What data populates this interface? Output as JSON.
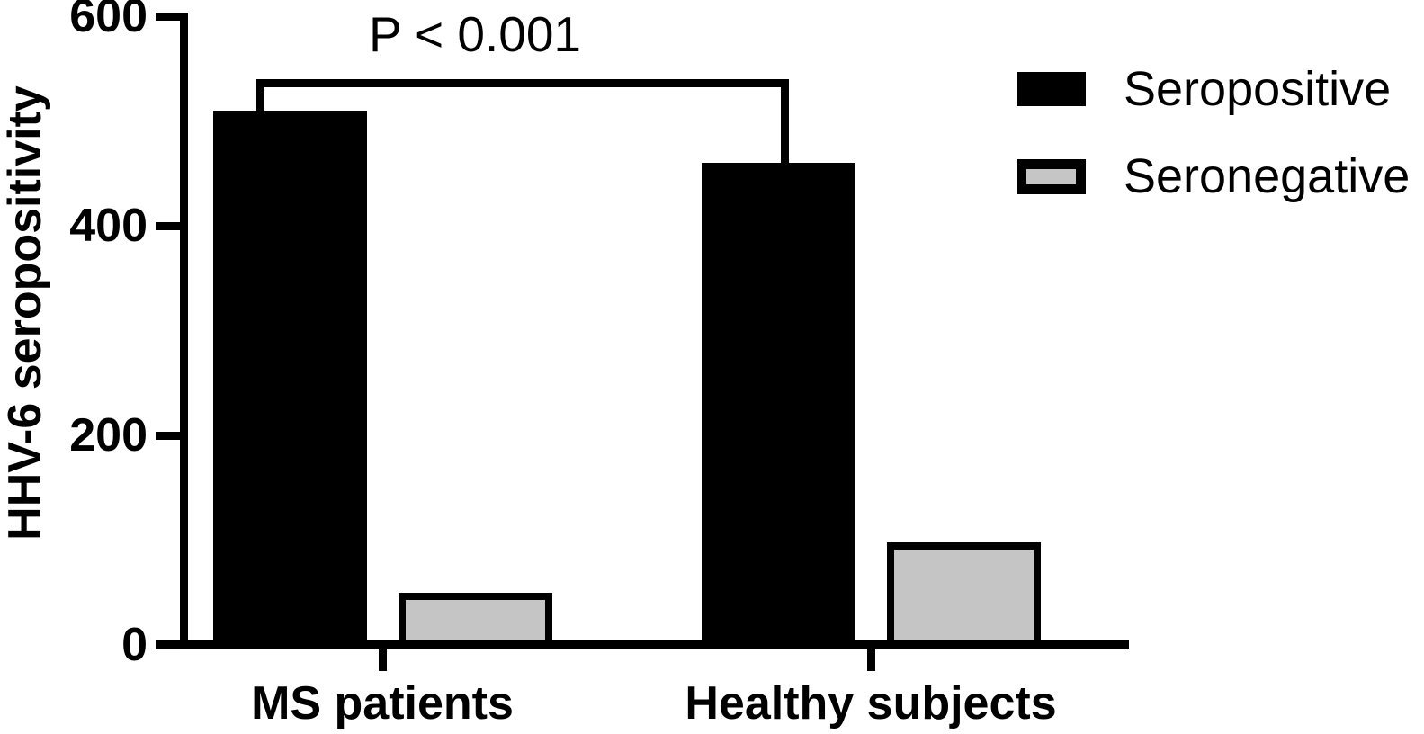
{
  "chart_data": {
    "type": "bar",
    "title": "",
    "ylabel": "HHV-6 seropositivity",
    "xlabel": "",
    "categories": [
      "MS patients",
      "Healthy subjects"
    ],
    "series": [
      {
        "name": "Seropositive",
        "color": "#000000",
        "values": [
          510,
          460
        ]
      },
      {
        "name": "Seronegative",
        "color": "#c5c5c5",
        "border_color": "#000000",
        "values": [
          50,
          98
        ]
      }
    ],
    "ylim": [
      0,
      600
    ],
    "yticks": [
      600,
      400,
      200,
      0
    ],
    "grid": false,
    "legend": {
      "position": "top-right",
      "entries": [
        "Seropositive",
        "Seronegative"
      ]
    },
    "annotation": {
      "text": "P < 0.001",
      "compares": [
        "MS patients Seropositive",
        "Healthy subjects Seropositive"
      ]
    },
    "axis_color": "#000000"
  }
}
